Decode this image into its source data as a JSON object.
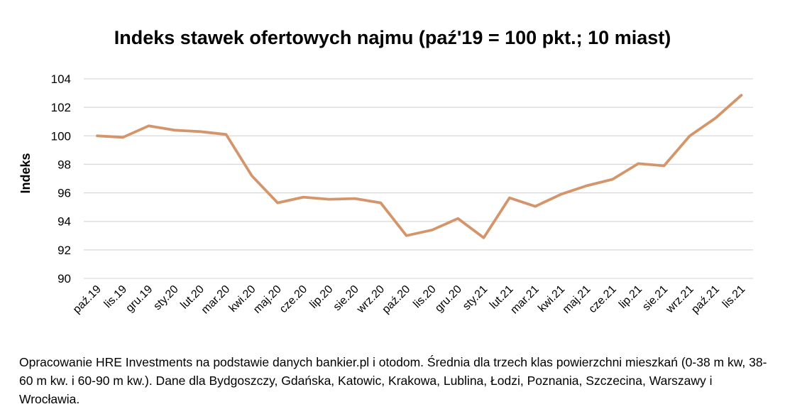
{
  "chart_data": {
    "type": "line",
    "title": "Indeks stawek ofertowych najmu (paź'19 = 100 pkt.; 10 miast)",
    "xlabel": "",
    "ylabel": "Indeks",
    "ylim": [
      90,
      104
    ],
    "yticks": [
      90,
      92,
      94,
      96,
      98,
      100,
      102,
      104
    ],
    "grid": true,
    "line_color": "#D4956A",
    "categories": [
      "paź.19",
      "lis.19",
      "gru.19",
      "sty.20",
      "lut.20",
      "mar.20",
      "kwi.20",
      "maj.20",
      "cze.20",
      "lip.20",
      "sie.20",
      "wrz.20",
      "paź.20",
      "lis.20",
      "gru.20",
      "sty.21",
      "lut.21",
      "mar.21",
      "kwi.21",
      "maj.21",
      "cze.21",
      "lip.21",
      "sie.21",
      "wrz.21",
      "paź.21",
      "lis.21"
    ],
    "series": [
      {
        "values": [
          100.0,
          99.9,
          100.7,
          100.4,
          100.3,
          100.1,
          97.2,
          95.3,
          95.7,
          95.55,
          95.6,
          95.3,
          93.0,
          93.4,
          94.2,
          92.85,
          95.65,
          95.05,
          95.9,
          96.5,
          96.95,
          98.05,
          97.9,
          100.0,
          101.25,
          102.85
        ]
      }
    ]
  },
  "footnote": "Opracowanie HRE Investments na podstawie danych bankier.pl i otodom. Średnia dla trzech klas powierzchni mieszkań (0-38 m kw, 38-60 m kw. i 60-90 m kw.). Dane dla Bydgoszczy, Gdańska, Katowic, Krakowa, Lublina, Łodzi, Poznania, Szczecina, Warszawy i Wrocławia."
}
